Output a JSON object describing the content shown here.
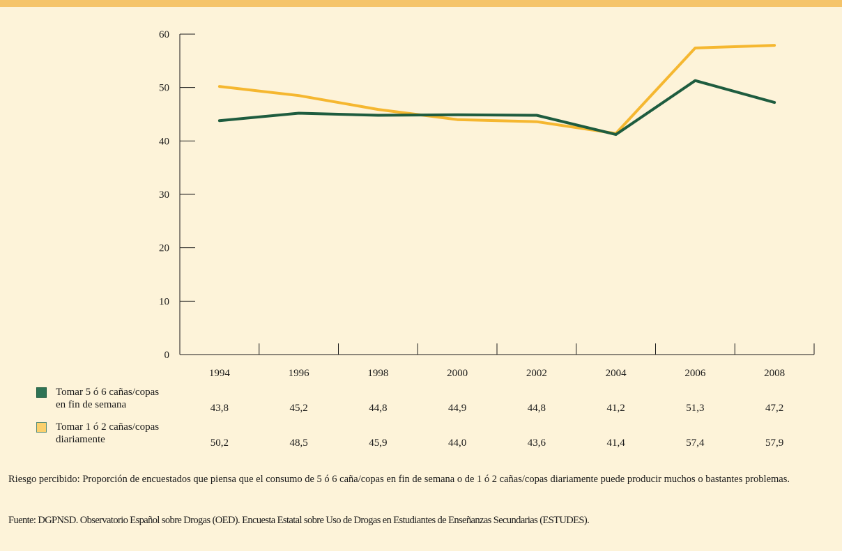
{
  "chart_data": {
    "type": "line",
    "categories": [
      "1994",
      "1996",
      "1998",
      "2000",
      "2002",
      "2004",
      "2006",
      "2008"
    ],
    "ylim": [
      0,
      60
    ],
    "yticks": [
      "0",
      "10",
      "20",
      "30",
      "40",
      "50",
      "60"
    ],
    "grid": false,
    "legend_placement": "bottom-left table",
    "series": [
      {
        "name_line1": "Tomar 5 ó 6 cañas/copas",
        "name_line2": "en fin de semana",
        "color": "#1e5c3f",
        "swatch_color": "#2e7355",
        "values": [
          43.8,
          45.2,
          44.8,
          44.9,
          44.8,
          41.2,
          51.3,
          47.2
        ],
        "labels": [
          "43,8",
          "45,2",
          "44,8",
          "44,9",
          "44,8",
          "41,2",
          "51,3",
          "47,2"
        ]
      },
      {
        "name_line1": "Tomar 1 ó 2 cañas/copas",
        "name_line2": "diariamente",
        "color": "#f5b730",
        "swatch_color": "#fbd06c",
        "values": [
          50.2,
          48.5,
          45.9,
          44.0,
          43.6,
          41.4,
          57.4,
          57.9
        ],
        "labels": [
          "50,2",
          "48,5",
          "45,9",
          "44,0",
          "43,6",
          "41,4",
          "57,4",
          "57,9"
        ]
      }
    ]
  },
  "notes": {
    "definition": "Riesgo percibido: Proporción de encuestados que piensa que el consumo de 5 ó 6 caña/copas en fin de semana o de 1 ó 2 cañas/copas diariamente puede producir muchos o bastantes problemas.",
    "source": "Fuente: DGPNSD. Observatorio Español sobre Drogas (OED). Encuesta Estatal sobre Uso de Drogas en Estudiantes de Enseñanzas Secundarias (ESTUDES)."
  }
}
